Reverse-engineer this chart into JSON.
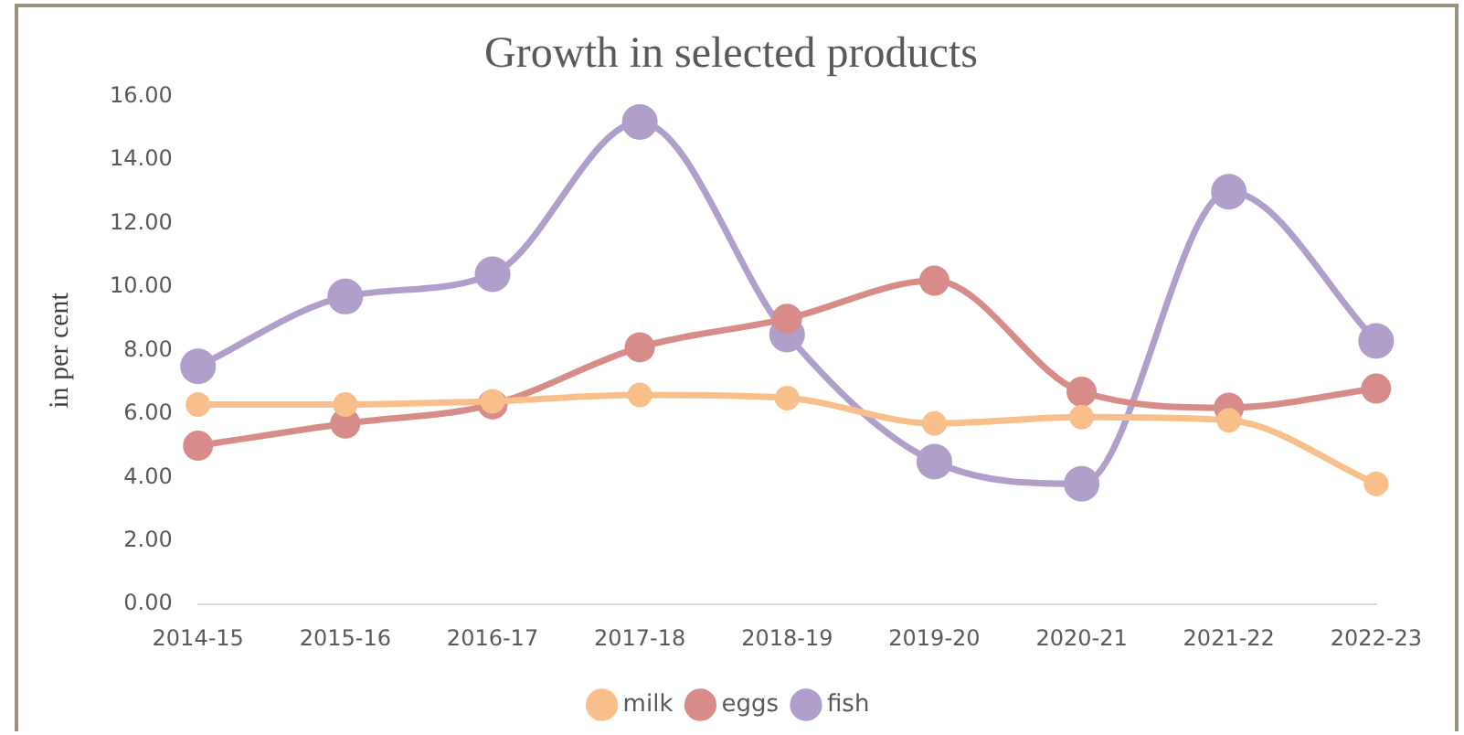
{
  "chart_data": {
    "type": "line",
    "title": "Growth in selected products",
    "ylabel": "in per cent",
    "categories": [
      "2014-15",
      "2015-16",
      "2016-17",
      "2017-18",
      "2018-19",
      "2019-20",
      "2020-21",
      "2021-22",
      "2022-23"
    ],
    "series": [
      {
        "name": "milk",
        "color": "#f9bf8a",
        "values": [
          6.3,
          6.3,
          6.4,
          6.6,
          6.5,
          5.7,
          5.9,
          5.8,
          3.8
        ]
      },
      {
        "name": "eggs",
        "color": "#d88c8a",
        "values": [
          5.0,
          5.7,
          6.3,
          8.1,
          9.0,
          10.2,
          6.7,
          6.2,
          6.8
        ]
      },
      {
        "name": "fish",
        "color": "#b09fcb",
        "values": [
          7.5,
          9.7,
          10.4,
          15.2,
          8.5,
          4.5,
          3.8,
          13.0,
          8.3
        ]
      }
    ],
    "ylim": [
      0,
      16
    ],
    "yticks": [
      {
        "value": 0,
        "label": "0.00"
      },
      {
        "value": 2,
        "label": "2.00"
      },
      {
        "value": 4,
        "label": "4.00"
      },
      {
        "value": 6,
        "label": "6.00"
      },
      {
        "value": 8,
        "label": "8.00"
      },
      {
        "value": 10,
        "label": "10.00"
      },
      {
        "value": 12,
        "label": "12.00"
      },
      {
        "value": 14,
        "label": "14.00"
      },
      {
        "value": 16,
        "label": "16.00"
      }
    ],
    "grid": false,
    "legend": "bottom",
    "marker": "circle",
    "line_style": "solid"
  }
}
